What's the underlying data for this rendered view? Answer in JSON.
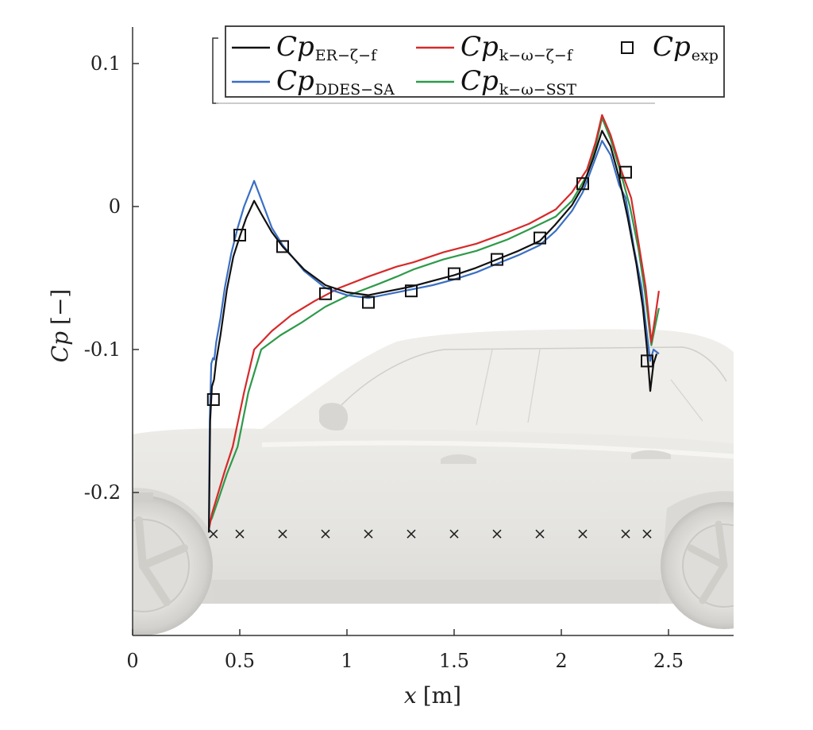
{
  "chart_data": {
    "type": "line",
    "title": "",
    "xlabel": "x [m]",
    "ylabel": "Cp [-]",
    "xlim": [
      0,
      2.8
    ],
    "ylim": [
      -0.3,
      0.125
    ],
    "x_ticks": [
      0,
      0.5,
      1,
      1.5,
      2,
      2.5
    ],
    "x_tick_labels": [
      "0",
      "0.5",
      "1",
      "1.5",
      "2",
      "2.5"
    ],
    "y_ticks": [
      0.1,
      0,
      -0.1,
      -0.2
    ],
    "y_tick_labels": [
      "0.1",
      "0",
      "-0.1",
      "-0.2"
    ],
    "grid": false,
    "legend_position": "top-right (inside)",
    "background_image": "side view of sedan car (grey render) behind plot",
    "series": [
      {
        "name": "Cp_ER-ζ-f",
        "label_main": "Cp",
        "label_sub": "ER−ζ−f",
        "color": "#111111",
        "points": [
          [
            0.356,
            -0.228
          ],
          [
            0.358,
            -0.2
          ],
          [
            0.362,
            -0.15
          ],
          [
            0.37,
            -0.126
          ],
          [
            0.38,
            -0.121
          ],
          [
            0.39,
            -0.108
          ],
          [
            0.41,
            -0.09
          ],
          [
            0.44,
            -0.058
          ],
          [
            0.47,
            -0.035
          ],
          [
            0.5,
            -0.021
          ],
          [
            0.53,
            -0.008
          ],
          [
            0.567,
            0.004
          ],
          [
            0.6,
            -0.005
          ],
          [
            0.65,
            -0.018
          ],
          [
            0.7,
            -0.028
          ],
          [
            0.8,
            -0.044
          ],
          [
            0.9,
            -0.055
          ],
          [
            1.0,
            -0.06
          ],
          [
            1.1,
            -0.062
          ],
          [
            1.2,
            -0.059
          ],
          [
            1.3,
            -0.056
          ],
          [
            1.4,
            -0.052
          ],
          [
            1.5,
            -0.048
          ],
          [
            1.6,
            -0.043
          ],
          [
            1.7,
            -0.037
          ],
          [
            1.8,
            -0.031
          ],
          [
            1.9,
            -0.024
          ],
          [
            1.97,
            -0.013
          ],
          [
            2.05,
            0.001
          ],
          [
            2.1,
            0.014
          ],
          [
            2.15,
            0.034
          ],
          [
            2.19,
            0.053
          ],
          [
            2.23,
            0.042
          ],
          [
            2.27,
            0.02
          ],
          [
            2.31,
            -0.008
          ],
          [
            2.35,
            -0.04
          ],
          [
            2.38,
            -0.07
          ],
          [
            2.4,
            -0.1
          ],
          [
            2.415,
            -0.129
          ],
          [
            2.43,
            -0.11
          ],
          [
            2.445,
            -0.103
          ]
        ]
      },
      {
        "name": "Cp_k-ω-ζ-f",
        "label_main": "Cp",
        "label_sub": "k−ω−ζ−f",
        "color": "#d62a2a",
        "points": [
          [
            0.356,
            -0.226
          ],
          [
            0.37,
            -0.215
          ],
          [
            0.4,
            -0.2
          ],
          [
            0.43,
            -0.185
          ],
          [
            0.467,
            -0.168
          ],
          [
            0.52,
            -0.13
          ],
          [
            0.567,
            -0.1
          ],
          [
            0.65,
            -0.087
          ],
          [
            0.74,
            -0.076
          ],
          [
            0.85,
            -0.066
          ],
          [
            0.963,
            -0.057
          ],
          [
            1.1,
            -0.049
          ],
          [
            1.233,
            -0.042
          ],
          [
            1.31,
            -0.039
          ],
          [
            1.45,
            -0.032
          ],
          [
            1.604,
            -0.026
          ],
          [
            1.75,
            -0.018
          ],
          [
            1.85,
            -0.012
          ],
          [
            1.974,
            -0.002
          ],
          [
            2.05,
            0.01
          ],
          [
            2.12,
            0.026
          ],
          [
            2.16,
            0.045
          ],
          [
            2.19,
            0.064
          ],
          [
            2.23,
            0.05
          ],
          [
            2.28,
            0.025
          ],
          [
            2.326,
            0.006
          ],
          [
            2.36,
            -0.025
          ],
          [
            2.393,
            -0.056
          ],
          [
            2.41,
            -0.08
          ],
          [
            2.42,
            -0.095
          ],
          [
            2.44,
            -0.075
          ],
          [
            2.455,
            -0.059
          ]
        ]
      },
      {
        "name": "Cp_DDES-SA",
        "label_main": "Cp",
        "label_sub": "DDES−SA",
        "color": "#3a6fc4",
        "points": [
          [
            0.356,
            -0.228
          ],
          [
            0.357,
            -0.2
          ],
          [
            0.36,
            -0.15
          ],
          [
            0.367,
            -0.11
          ],
          [
            0.375,
            -0.106
          ],
          [
            0.381,
            -0.107
          ],
          [
            0.39,
            -0.095
          ],
          [
            0.41,
            -0.078
          ],
          [
            0.43,
            -0.057
          ],
          [
            0.46,
            -0.033
          ],
          [
            0.49,
            -0.015
          ],
          [
            0.52,
            0.0
          ],
          [
            0.567,
            0.018
          ],
          [
            0.6,
            0.005
          ],
          [
            0.65,
            -0.015
          ],
          [
            0.7,
            -0.027
          ],
          [
            0.8,
            -0.045
          ],
          [
            0.9,
            -0.057
          ],
          [
            1.0,
            -0.062
          ],
          [
            1.1,
            -0.064
          ],
          [
            1.2,
            -0.061
          ],
          [
            1.3,
            -0.058
          ],
          [
            1.4,
            -0.055
          ],
          [
            1.5,
            -0.051
          ],
          [
            1.604,
            -0.046
          ],
          [
            1.7,
            -0.04
          ],
          [
            1.8,
            -0.034
          ],
          [
            1.9,
            -0.027
          ],
          [
            1.974,
            -0.017
          ],
          [
            2.05,
            -0.003
          ],
          [
            2.1,
            0.01
          ],
          [
            2.15,
            0.03
          ],
          [
            2.19,
            0.046
          ],
          [
            2.23,
            0.036
          ],
          [
            2.27,
            0.015
          ],
          [
            2.3,
            0.006
          ],
          [
            2.34,
            -0.03
          ],
          [
            2.374,
            -0.056
          ],
          [
            2.4,
            -0.09
          ],
          [
            2.415,
            -0.108
          ],
          [
            2.43,
            -0.1
          ],
          [
            2.455,
            -0.103
          ]
        ]
      },
      {
        "name": "Cp_k-ω-SST",
        "label_main": "Cp",
        "label_sub": "k−ω−SST",
        "color": "#2e9a4a",
        "points": [
          [
            0.356,
            -0.222
          ],
          [
            0.37,
            -0.218
          ],
          [
            0.4,
            -0.205
          ],
          [
            0.44,
            -0.187
          ],
          [
            0.49,
            -0.168
          ],
          [
            0.54,
            -0.13
          ],
          [
            0.6,
            -0.1
          ],
          [
            0.69,
            -0.09
          ],
          [
            0.79,
            -0.081
          ],
          [
            0.9,
            -0.07
          ],
          [
            1.01,
            -0.062
          ],
          [
            1.15,
            -0.054
          ],
          [
            1.233,
            -0.049
          ],
          [
            1.31,
            -0.044
          ],
          [
            1.45,
            -0.037
          ],
          [
            1.604,
            -0.031
          ],
          [
            1.75,
            -0.023
          ],
          [
            1.85,
            -0.016
          ],
          [
            1.974,
            -0.007
          ],
          [
            2.05,
            0.004
          ],
          [
            2.12,
            0.022
          ],
          [
            2.16,
            0.042
          ],
          [
            2.19,
            0.062
          ],
          [
            2.23,
            0.047
          ],
          [
            2.28,
            0.022
          ],
          [
            2.32,
            0.0
          ],
          [
            2.36,
            -0.03
          ],
          [
            2.39,
            -0.06
          ],
          [
            2.41,
            -0.085
          ],
          [
            2.42,
            -0.097
          ],
          [
            2.44,
            -0.082
          ],
          [
            2.455,
            -0.071
          ]
        ]
      },
      {
        "name": "Cp_exp",
        "label_main": "Cp",
        "label_sub": "exp",
        "color": "#111111",
        "marker": "square",
        "points": [
          [
            0.377,
            -0.135
          ],
          [
            0.5,
            -0.02
          ],
          [
            0.7,
            -0.028
          ],
          [
            0.9,
            -0.061
          ],
          [
            1.1,
            -0.067
          ],
          [
            1.3,
            -0.059
          ],
          [
            1.5,
            -0.047
          ],
          [
            1.7,
            -0.037
          ],
          [
            1.9,
            -0.022
          ],
          [
            2.1,
            0.016
          ],
          [
            2.3,
            0.024
          ],
          [
            2.4,
            -0.108
          ]
        ]
      }
    ],
    "probe_markers": {
      "marker": "x",
      "y_value": -0.229,
      "x": [
        0.377,
        0.5,
        0.7,
        0.9,
        1.1,
        1.3,
        1.5,
        1.7,
        1.9,
        2.1,
        2.3,
        2.4
      ]
    }
  },
  "axes": {
    "xlabel_var": "x",
    "xlabel_unit": "[m]",
    "ylabel_var": "Cp",
    "ylabel_unit": "[−]"
  },
  "legend": {
    "items": [
      {
        "main": "Cp",
        "sub": "ER−ζ−f",
        "color": "#111111",
        "kind": "line"
      },
      {
        "main": "Cp",
        "sub": "k−ω−ζ−f",
        "color": "#d62a2a",
        "kind": "line"
      },
      {
        "main": "Cp",
        "sub": "exp",
        "color": "#111111",
        "kind": "square"
      },
      {
        "main": "Cp",
        "sub": "DDES−SA",
        "color": "#3a6fc4",
        "kind": "line"
      },
      {
        "main": "Cp",
        "sub": "k−ω−SST",
        "color": "#2e9a4a",
        "kind": "line"
      }
    ]
  }
}
